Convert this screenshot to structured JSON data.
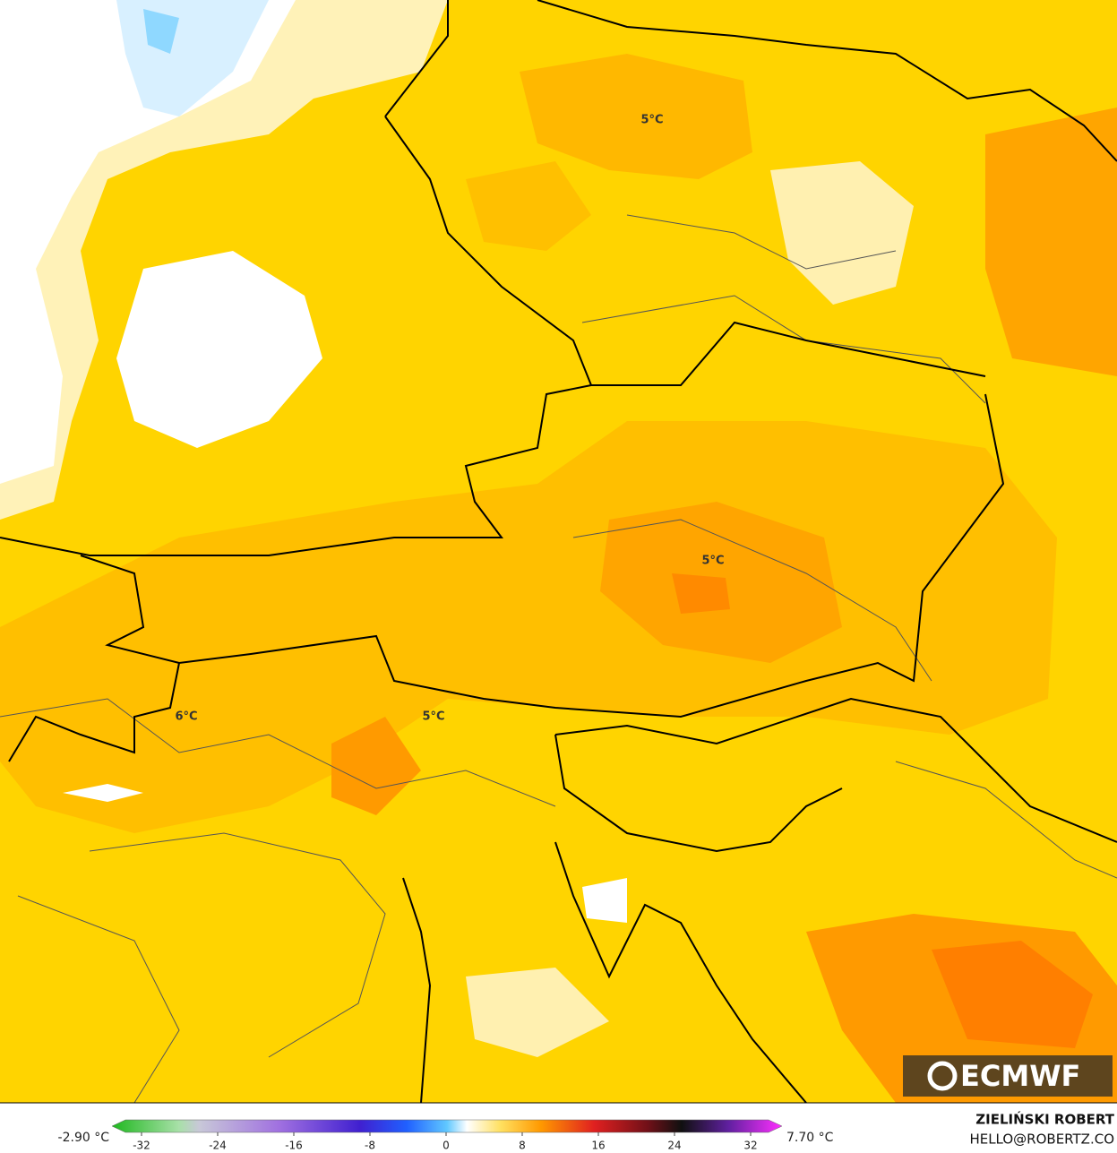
{
  "map": {
    "contour_labels": [
      "5°C",
      "5°C",
      "5°C",
      "6°C"
    ],
    "logo": "ECMWF"
  },
  "colorbar": {
    "min_label": "-2.90 °C",
    "max_label": "7.70 °C",
    "ticks": [
      -32,
      -24,
      -16,
      -8,
      0,
      8,
      16,
      24,
      32
    ]
  },
  "credits": {
    "author": "ZIELIŃSKI ROBERT",
    "contact": "HELLO@ROBERTZ.CO"
  }
}
